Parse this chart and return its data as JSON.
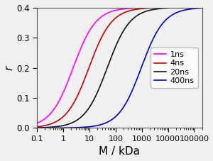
{
  "title": "",
  "xlabel": "M / kDa",
  "ylabel": "r",
  "r0": 0.4,
  "series": [
    {
      "label": "1ns",
      "tau_ns": 1,
      "color": "#ff00ff"
    },
    {
      "label": "4ns",
      "tau_ns": 4,
      "color": "#cc0000"
    },
    {
      "label": "20ns",
      "tau_ns": 20,
      "color": "#111111"
    },
    {
      "label": "400ns",
      "tau_ns": 400,
      "color": "#0000cc"
    }
  ],
  "phi_per_kDa": 0.42,
  "xlim_min": 0.1,
  "xlim_max": 200000,
  "ylim_min": 0,
  "ylim_max": 0.4,
  "yticks": [
    0.0,
    0.1,
    0.2,
    0.3,
    0.4
  ],
  "xticks": [
    0.1,
    1,
    10,
    100,
    1000,
    10000,
    100000
  ],
  "xtick_labels": [
    "0.1",
    "1",
    "10",
    "100",
    "1000",
    "10000",
    "100000"
  ],
  "bg_color": "#f0f0f0",
  "fig_bg": "#f0f0f0"
}
